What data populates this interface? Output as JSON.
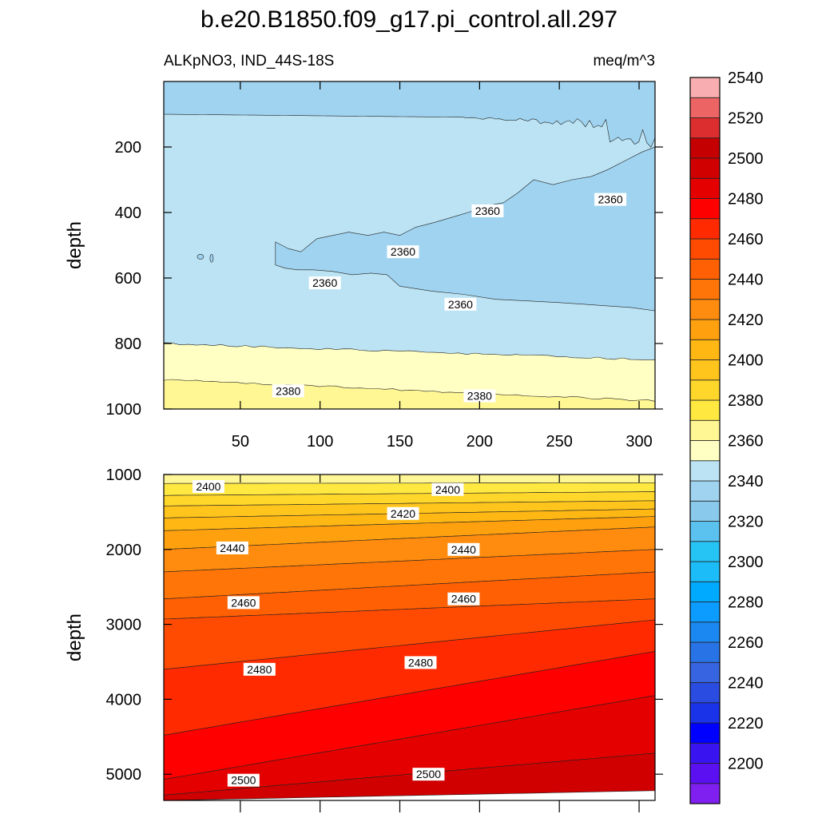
{
  "chart_data": {
    "type": "contour",
    "title": "b.e20.B1850.f09_g17.pi_control.all.297",
    "subtitle_left": "ALKpNO3, IND_44S-18S",
    "subtitle_right": "meq/m^3",
    "x_ticks": [
      50,
      100,
      150,
      200,
      250,
      300
    ],
    "x_range": [
      2,
      310
    ],
    "panels": [
      {
        "name": "upper",
        "ylabel": "depth",
        "y_range": [
          1000,
          0
        ],
        "y_ticks": [
          200,
          400,
          600,
          800,
          1000
        ],
        "bands": [
          {
            "level_min": 2350,
            "level_max": 2360,
            "color": "#9fd3f0",
            "boundary_note": "2360 contour"
          },
          {
            "level_min": 2360,
            "level_max": 2370,
            "color": "#bce3f3"
          },
          {
            "level_min": 2370,
            "level_max": 2380,
            "color": "#ffffc4"
          },
          {
            "level_min": 2380,
            "level_max": 2390,
            "color": "#fff694"
          }
        ],
        "contour_labels": [
          {
            "text": "2360",
            "x": 152,
            "y": 520
          },
          {
            "text": "2360",
            "x": 205,
            "y": 395
          },
          {
            "text": "2360",
            "x": 282,
            "y": 360
          },
          {
            "text": "2360",
            "x": 103,
            "y": 615
          },
          {
            "text": "2360",
            "x": 188,
            "y": 680
          },
          {
            "text": "2380",
            "x": 80,
            "y": 945
          },
          {
            "text": "2380",
            "x": 200,
            "y": 960
          }
        ]
      },
      {
        "name": "lower",
        "ylabel": "depth",
        "y_range": [
          5350,
          1000
        ],
        "y_ticks": [
          1000,
          2000,
          3000,
          4000,
          5000
        ],
        "levels_left": [
          1000,
          1120,
          1280,
          1420,
          1580,
          1750,
          2000,
          2300,
          2660,
          2930,
          3600,
          4480,
          5070,
          5280,
          5350
        ],
        "levels_right": [
          1000,
          1110,
          1230,
          1350,
          1460,
          1560,
          1700,
          2000,
          2300,
          2660,
          2940,
          3360,
          3950,
          4720,
          5220
        ],
        "band_colors": [
          "#fff696",
          "#ffe840",
          "#ffd72b",
          "#ffc51c",
          "#ffb714",
          "#ffa10e",
          "#ff8c0e",
          "#ff7507",
          "#ff6004",
          "#ff4a02",
          "#ff2a00",
          "#fe0000",
          "#e50000",
          "#d00000"
        ],
        "contour_labels": [
          {
            "text": "2400",
            "x": 30,
            "y": 1160
          },
          {
            "text": "2400",
            "x": 180,
            "y": 1200
          },
          {
            "text": "2420",
            "x": 152,
            "y": 1520
          },
          {
            "text": "2440",
            "x": 45,
            "y": 1980
          },
          {
            "text": "2440",
            "x": 190,
            "y": 2000
          },
          {
            "text": "2460",
            "x": 52,
            "y": 2710
          },
          {
            "text": "2460",
            "x": 190,
            "y": 2660
          },
          {
            "text": "2480",
            "x": 62,
            "y": 3600
          },
          {
            "text": "2480",
            "x": 163,
            "y": 3510
          },
          {
            "text": "2500",
            "x": 52,
            "y": 5080
          },
          {
            "text": "2500",
            "x": 168,
            "y": 5000
          }
        ]
      }
    ],
    "colorbar": {
      "labels": [
        2200,
        2220,
        2240,
        2260,
        2280,
        2300,
        2320,
        2340,
        2360,
        2380,
        2400,
        2420,
        2440,
        2460,
        2480,
        2500,
        2520,
        2540
      ],
      "colors": [
        "#7f1ff0",
        "#5a10f0",
        "#3a14f0",
        "#0000ff",
        "#1a32e8",
        "#2a4ce0",
        "#3764e0",
        "#2874e6",
        "#1a88f0",
        "#0c9cff",
        "#00aaff",
        "#1bbcf8",
        "#26c3f5",
        "#5bc2f0",
        "#89c9ec",
        "#9fd3f0",
        "#bce3f3",
        "#ffffc4",
        "#fff694",
        "#ffe840",
        "#ffd72b",
        "#ffc51c",
        "#ffb714",
        "#ffa10e",
        "#ff8c0e",
        "#ff7507",
        "#ff6004",
        "#ff4a02",
        "#ff2a00",
        "#fe0000",
        "#e50000",
        "#d00000",
        "#c40000",
        "#dc2e2e",
        "#ec6464",
        "#f8aeb0"
      ]
    }
  }
}
